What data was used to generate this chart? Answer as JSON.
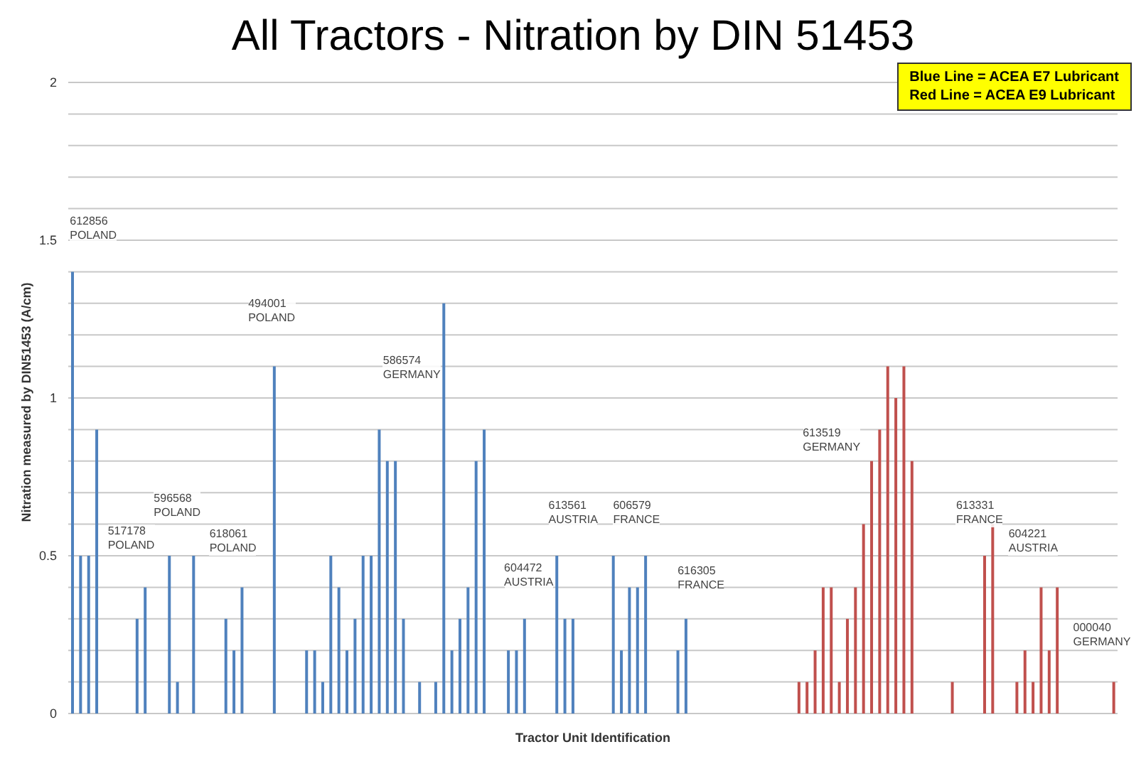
{
  "chart_data": {
    "type": "bar",
    "title": "All Tractors - Nitration by DIN 51453",
    "xlabel": "Tractor Unit Identification",
    "ylabel": "Nitration  measured by DIN51453 (A/cm)",
    "stacked": true,
    "grid": "y",
    "legend": false,
    "categories": [
      null,
      null,
      null,
      null,
      null,
      null,
      null,
      null,
      null,
      null,
      null,
      null,
      null,
      null,
      null,
      null,
      null,
      null,
      null,
      null,
      null,
      null,
      null,
      null,
      null,
      null,
      null,
      null,
      null,
      null,
      null,
      null,
      null,
      null,
      null,
      null,
      null,
      null,
      null,
      null,
      null,
      null,
      null,
      null,
      null,
      null,
      null,
      null,
      null,
      null,
      null,
      null,
      null,
      null,
      null,
      null,
      null,
      null,
      null,
      null,
      null,
      null,
      null,
      null,
      null,
      null,
      null,
      null,
      null,
      null,
      null,
      null,
      null,
      null,
      null,
      null,
      null,
      null,
      null,
      null,
      null,
      null,
      null,
      null,
      null,
      null,
      null,
      null,
      null,
      null,
      null,
      null,
      null,
      null,
      null,
      null,
      null,
      null,
      null,
      null,
      null,
      null,
      null,
      null,
      null,
      null,
      null,
      null,
      null,
      null,
      null,
      null,
      null,
      null,
      null,
      null,
      null,
      null,
      null,
      null,
      null,
      null,
      null,
      null,
      null,
      null,
      null,
      null,
      null,
      null
    ],
    "ylim": [
      0,
      2
    ],
    "yticks": [
      0,
      {
        "value": 0.1,
        "label": null
      },
      {
        "value": 0.2,
        "label": null
      },
      {
        "value": 0.3,
        "label": null
      },
      {
        "value": 0.4,
        "label": null
      },
      0.5,
      {
        "value": 0.6,
        "label": null
      },
      {
        "value": 0.7,
        "label": null
      },
      {
        "value": 0.8,
        "label": null
      },
      {
        "value": 0.9,
        "label": null
      },
      1,
      {
        "value": 1.1,
        "label": null
      },
      {
        "value": 1.2,
        "label": null
      },
      {
        "value": 1.3,
        "label": null
      },
      {
        "value": 1.4,
        "label": null
      },
      1.5,
      {
        "value": 1.6,
        "label": null
      },
      {
        "value": 1.7,
        "label": null
      },
      {
        "value": 1.8,
        "label": null
      },
      {
        "value": 1.9,
        "label": null
      },
      2
    ],
    "series": [
      {
        "color": "#4f81bd",
        "values": [
          1.4,
          0.5,
          0.5,
          0.9,
          null,
          null,
          null,
          null,
          0.3,
          0.4,
          null,
          null,
          0.5,
          0.1,
          null,
          0.5,
          null,
          null,
          null,
          0.3,
          0.2,
          0.4,
          null,
          null,
          null,
          1.1,
          null,
          null,
          null,
          0.2,
          0.2,
          0.1,
          0.5,
          0.4,
          0.2,
          0.3,
          0.5,
          0.5,
          0.9,
          0.8,
          0.8,
          0.3,
          null,
          0.1,
          null,
          0.1,
          1.3,
          0.2,
          0.3,
          0.4,
          0.8,
          0.9,
          null,
          null,
          0.2,
          0.2,
          0.3,
          null,
          null,
          null,
          0.5,
          0.3,
          0.3,
          null,
          null,
          null,
          null,
          0.5,
          0.2,
          0.4,
          0.4,
          0.5,
          null,
          null,
          null,
          0.2,
          0.3,
          null,
          null,
          null,
          null,
          null,
          null,
          null,
          null,
          null,
          null,
          null,
          null,
          null,
          null,
          null,
          null,
          null,
          null,
          null,
          null,
          null,
          null,
          null,
          null,
          null,
          null,
          null,
          null,
          null,
          null,
          null,
          null,
          null,
          null,
          null,
          null,
          null,
          null,
          null,
          null,
          null,
          null,
          null,
          null,
          null,
          null,
          null,
          null,
          null,
          null,
          null,
          null,
          null
        ]
      },
      {
        "color": "#c0504d",
        "values": [
          null,
          null,
          null,
          null,
          null,
          null,
          null,
          null,
          null,
          null,
          null,
          null,
          null,
          null,
          null,
          null,
          null,
          null,
          null,
          null,
          null,
          null,
          null,
          null,
          null,
          null,
          null,
          null,
          null,
          null,
          null,
          null,
          null,
          null,
          null,
          null,
          null,
          null,
          null,
          null,
          null,
          null,
          null,
          null,
          null,
          null,
          null,
          null,
          null,
          null,
          null,
          null,
          null,
          null,
          null,
          null,
          null,
          null,
          null,
          null,
          null,
          null,
          null,
          null,
          null,
          null,
          null,
          null,
          null,
          null,
          null,
          null,
          null,
          null,
          null,
          null,
          null,
          null,
          null,
          null,
          null,
          null,
          null,
          null,
          null,
          null,
          null,
          null,
          null,
          null,
          0.1,
          0.1,
          0.2,
          0.4,
          0.4,
          0.1,
          0.3,
          0.4,
          0.6,
          0.8,
          0.9,
          1.1,
          1,
          1.1,
          0.8,
          null,
          null,
          null,
          null,
          0.1,
          null,
          null,
          null,
          0.5,
          0.6,
          null,
          null,
          0.1,
          0.2,
          0.1,
          0.4,
          0.2,
          0.4,
          null,
          null,
          null,
          null,
          null,
          null,
          0.1
        ]
      }
    ],
    "annotations": [
      "612856\nPOLAND",
      "517178\nPOLAND",
      "596568\nPOLAND",
      "618061\nPOLAND",
      "494001\nPOLAND",
      "586574\nGERMANY",
      "604472\nAUSTRIA",
      "613561\nAUSTRIA",
      "606579\nFRANCE",
      "616305\nFRANCE",
      "613519\nGERMANY",
      "613331\nFRANCE",
      "604221\nAUSTRIA",
      "000040\nGERMANY",
      "Blue Line = ACEA E7 Lubricant",
      "Red Line = ACEA E9 Lubricant"
    ]
  }
}
